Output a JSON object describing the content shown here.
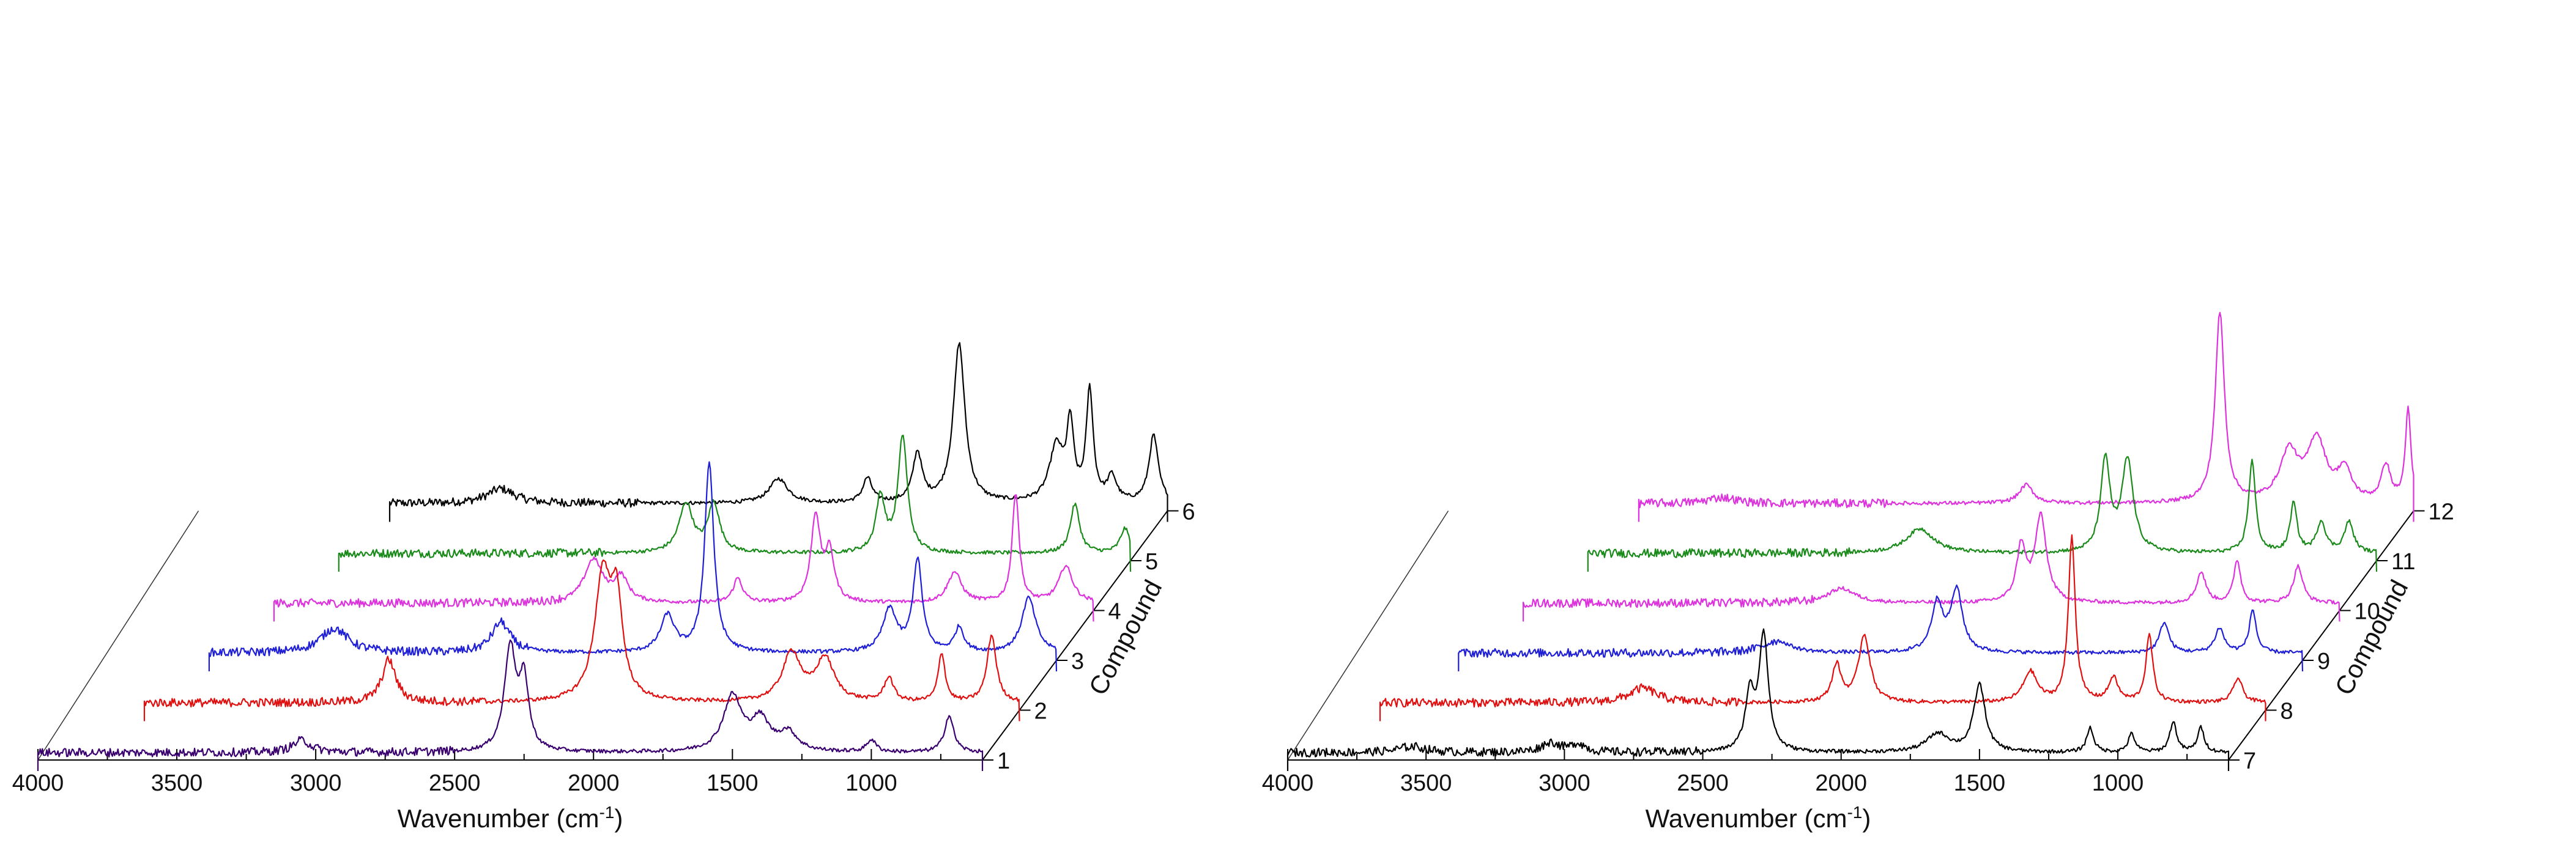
{
  "chart_data": [
    {
      "type": "line",
      "subtype": "3d-waterfall",
      "title": "",
      "xlabel": "Wavenumber (cm",
      "xlabel_exp": "-1",
      "xlabel_close": ")",
      "zlabel": "Compound",
      "x_range": [
        4000,
        600
      ],
      "x_ticks": [
        "4000",
        "3500",
        "3000",
        "2500",
        "2000",
        "1500",
        "1000"
      ],
      "z_ticks": [
        "1",
        "2",
        "3",
        "4",
        "5",
        "6"
      ],
      "series": [
        {
          "name": "1",
          "color": "#3a006f",
          "start": 4000,
          "peaks": [
            [
              3050,
              0.1,
              40
            ],
            [
              2300,
              0.85,
              25
            ],
            [
              2250,
              0.55,
              20
            ],
            [
              1500,
              0.45,
              40
            ],
            [
              1400,
              0.25,
              40
            ],
            [
              1300,
              0.15,
              40
            ],
            [
              1000,
              0.1,
              20
            ],
            [
              720,
              0.3,
              20
            ]
          ]
        },
        {
          "name": "2",
          "color": "#e01010",
          "start": 3750,
          "peaks": [
            [
              2870,
              0.35,
              30
            ],
            [
              2100,
              1.0,
              35
            ],
            [
              2050,
              0.75,
              25
            ],
            [
              1420,
              0.4,
              40
            ],
            [
              1300,
              0.35,
              40
            ],
            [
              1070,
              0.2,
              20
            ],
            [
              880,
              0.4,
              15
            ],
            [
              700,
              0.55,
              20
            ]
          ]
        },
        {
          "name": "3",
          "color": "#1f1fd6",
          "start": 3650,
          "peaks": [
            [
              3200,
              0.2,
              60
            ],
            [
              2600,
              0.25,
              40
            ],
            [
              2000,
              0.3,
              30
            ],
            [
              1850,
              1.55,
              20
            ],
            [
              1200,
              0.35,
              30
            ],
            [
              1100,
              0.75,
              20
            ],
            [
              950,
              0.2,
              20
            ],
            [
              700,
              0.45,
              30
            ]
          ]
        },
        {
          "name": "4",
          "color": "#dd33dd",
          "start": 3550,
          "peaks": [
            [
              2400,
              0.35,
              40
            ],
            [
              2300,
              0.2,
              30
            ],
            [
              1880,
              0.2,
              20
            ],
            [
              1600,
              0.7,
              20
            ],
            [
              1550,
              0.4,
              20
            ],
            [
              1100,
              0.25,
              30
            ],
            [
              880,
              0.9,
              15
            ],
            [
              700,
              0.3,
              30
            ]
          ]
        },
        {
          "name": "5",
          "color": "#1a8a1a",
          "start": 3450,
          "peaks": [
            [
              2200,
              0.4,
              30
            ],
            [
              2100,
              0.4,
              25
            ],
            [
              1500,
              0.45,
              20
            ],
            [
              1420,
              0.95,
              20
            ],
            [
              800,
              0.4,
              20
            ],
            [
              620,
              0.2,
              20
            ]
          ]
        },
        {
          "name": "6",
          "color": "#000000",
          "start": 3400,
          "peaks": [
            [
              3000,
              0.12,
              60
            ],
            [
              2000,
              0.2,
              40
            ],
            [
              1680,
              0.2,
              20
            ],
            [
              1500,
              0.4,
              20
            ],
            [
              1350,
              1.3,
              25
            ],
            [
              1000,
              0.45,
              30
            ],
            [
              950,
              0.6,
              15
            ],
            [
              880,
              0.9,
              15
            ],
            [
              800,
              0.2,
              20
            ],
            [
              650,
              0.55,
              20
            ]
          ]
        }
      ]
    },
    {
      "type": "line",
      "subtype": "3d-waterfall",
      "title": "",
      "xlabel": "Wavenumber (cm",
      "xlabel_exp": "-1",
      "xlabel_close": ")",
      "zlabel": "Compound",
      "x_range": [
        4000,
        600
      ],
      "x_ticks": [
        "4000",
        "3500",
        "3000",
        "2500",
        "2000",
        "1500",
        "1000"
      ],
      "z_ticks": [
        "7",
        "8",
        "9",
        "10",
        "11",
        "12"
      ],
      "series": [
        {
          "name": "7",
          "color": "#000000",
          "start": 4000,
          "peaks": [
            [
              3550,
              0.05,
              60
            ],
            [
              3050,
              0.08,
              40
            ],
            [
              2950,
              0.07,
              30
            ],
            [
              2330,
              0.45,
              20
            ],
            [
              2280,
              0.95,
              20
            ],
            [
              1650,
              0.15,
              50
            ],
            [
              1500,
              0.55,
              25
            ],
            [
              1100,
              0.2,
              15
            ],
            [
              950,
              0.15,
              15
            ],
            [
              800,
              0.25,
              15
            ],
            [
              700,
              0.2,
              15
            ]
          ]
        },
        {
          "name": "8",
          "color": "#e01010",
          "start": 3800,
          "peaks": [
            [
              2850,
              0.12,
              60
            ],
            [
              2150,
              0.3,
              20
            ],
            [
              2050,
              0.55,
              25
            ],
            [
              1450,
              0.25,
              30
            ],
            [
              1300,
              1.35,
              15
            ],
            [
              1150,
              0.2,
              20
            ],
            [
              1020,
              0.55,
              15
            ],
            [
              700,
              0.2,
              20
            ]
          ]
        },
        {
          "name": "9",
          "color": "#1f1fd6",
          "start": 3650,
          "peaks": [
            [
              2500,
              0.1,
              60
            ],
            [
              1920,
              0.4,
              25
            ],
            [
              1850,
              0.5,
              25
            ],
            [
              1100,
              0.25,
              20
            ],
            [
              900,
              0.2,
              20
            ],
            [
              780,
              0.35,
              15
            ]
          ]
        },
        {
          "name": "10",
          "color": "#dd33dd",
          "start": 3550,
          "peaks": [
            [
              2400,
              0.12,
              60
            ],
            [
              1750,
              0.45,
              20
            ],
            [
              1680,
              0.7,
              25
            ],
            [
              1100,
              0.25,
              20
            ],
            [
              970,
              0.35,
              15
            ],
            [
              750,
              0.3,
              20
            ]
          ]
        },
        {
          "name": "11",
          "color": "#1a8a1a",
          "start": 3450,
          "peaks": [
            [
              2250,
              0.2,
              60
            ],
            [
              1580,
              0.75,
              20
            ],
            [
              1500,
              0.75,
              25
            ],
            [
              1050,
              0.75,
              15
            ],
            [
              900,
              0.4,
              15
            ],
            [
              800,
              0.25,
              20
            ],
            [
              700,
              0.25,
              20
            ]
          ]
        },
        {
          "name": "12",
          "color": "#dd33dd",
          "start": 3400,
          "peaks": [
            [
              3100,
              0.05,
              60
            ],
            [
              2000,
              0.15,
              30
            ],
            [
              1300,
              1.55,
              20
            ],
            [
              1050,
              0.4,
              40
            ],
            [
              950,
              0.5,
              40
            ],
            [
              850,
              0.25,
              30
            ],
            [
              700,
              0.3,
              20
            ],
            [
              620,
              0.75,
              12
            ]
          ]
        }
      ]
    }
  ]
}
